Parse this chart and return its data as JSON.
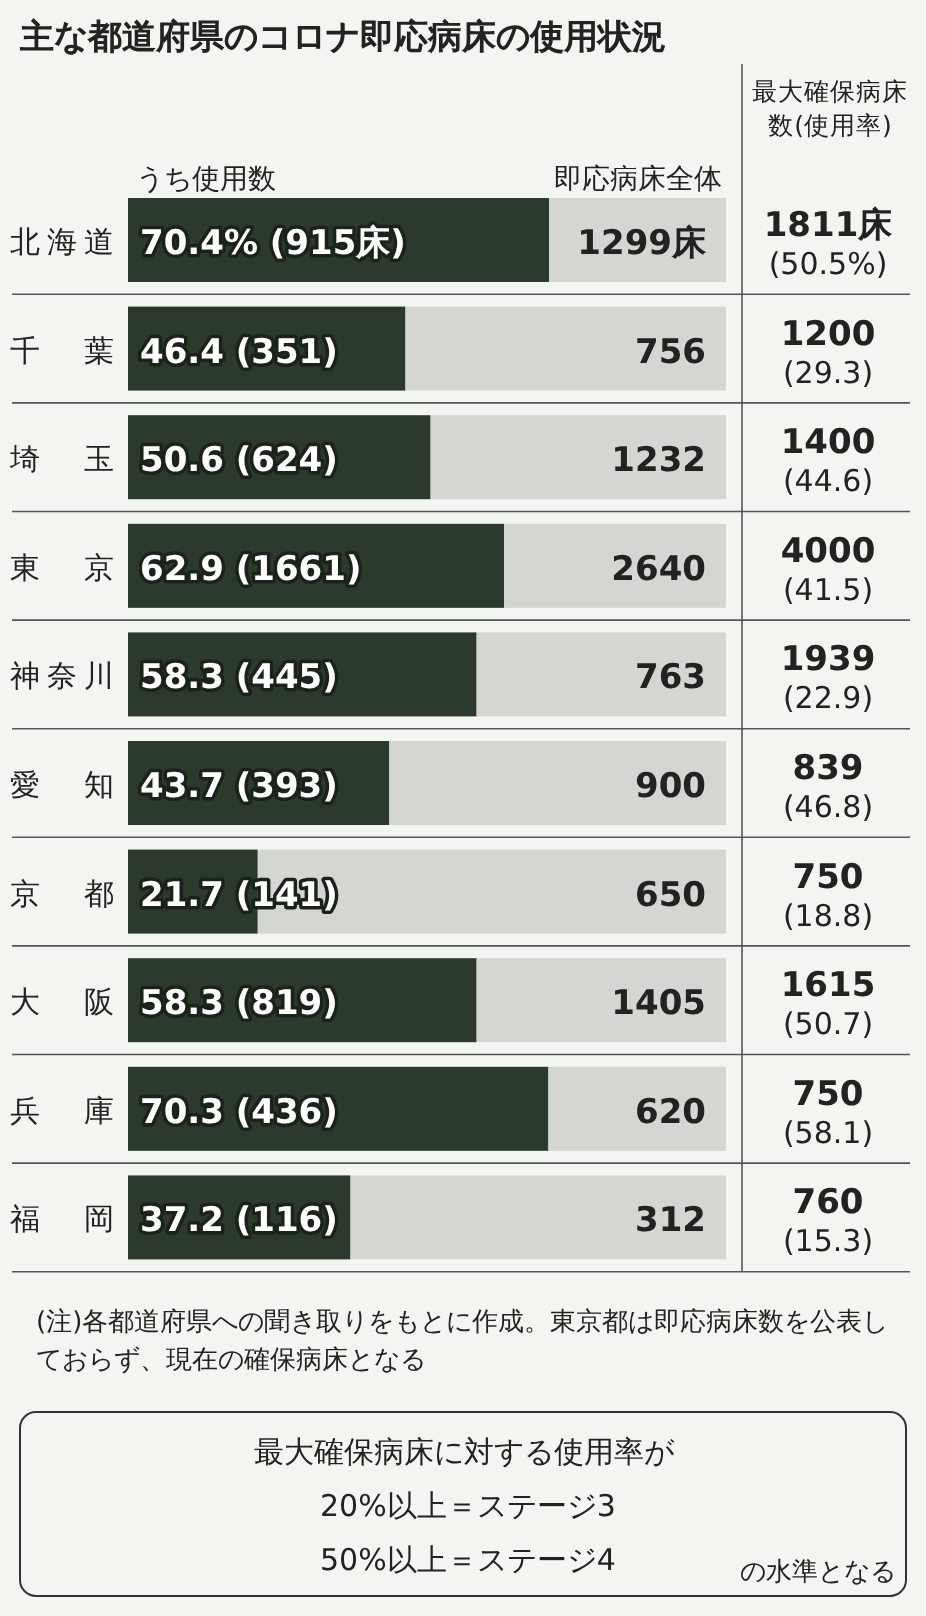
{
  "chart_data": {
    "type": "bar",
    "orientation": "horizontal",
    "stacked": true,
    "title": "主な都道府県のコロナ即応病床の使用状況",
    "categories": [
      "北海道",
      "千葉",
      "埼玉",
      "東京",
      "神奈川",
      "愛知",
      "京都",
      "大阪",
      "兵庫",
      "福岡"
    ],
    "series": [
      {
        "name": "うち使用数",
        "color": "#2b3a2c",
        "values": [
          70.4,
          46.4,
          50.6,
          62.9,
          58.3,
          43.7,
          21.7,
          58.3,
          70.3,
          37.2
        ],
        "value_labels": [
          "70.4% (915床)",
          "46.4 (351)",
          "50.6 (624)",
          "62.9 (1661)",
          "58.3 (445)",
          "43.7 (393)",
          "21.7 (141)",
          "58.3 (819)",
          "70.3 (436)",
          "37.2 (116)"
        ]
      },
      {
        "name": "即応病床全体",
        "color": "#d4d6d2",
        "values": [
          29.6,
          53.6,
          49.4,
          37.1,
          41.7,
          56.3,
          78.3,
          41.7,
          29.7,
          62.8
        ]
      }
    ],
    "xlim": [
      0,
      100
    ],
    "annotations": [
      "最大確保病床数(使用率)",
      "1299床",
      "756",
      "1232",
      "2640",
      "763",
      "900",
      "650",
      "1405",
      "620",
      "312",
      "1811床",
      "(50.5%)",
      "1200",
      "(29.3)",
      "1400",
      "(44.6)",
      "4000",
      "(41.5)",
      "1939",
      "(22.9)",
      "839",
      "(46.8)",
      "750",
      "(18.8)",
      "1615",
      "(50.7)",
      "750",
      "(58.1)",
      "760",
      "(15.3)",
      "(注)各都道府県への聞き取りをもとに作成。東京都は即応病床数を公表しておらず、現在の確保病床となる",
      "最大確保病床に対する使用率が",
      "20%以上＝ステージ3",
      "50%以上＝ステージ4",
      "の水準となる"
    ]
  }
}
